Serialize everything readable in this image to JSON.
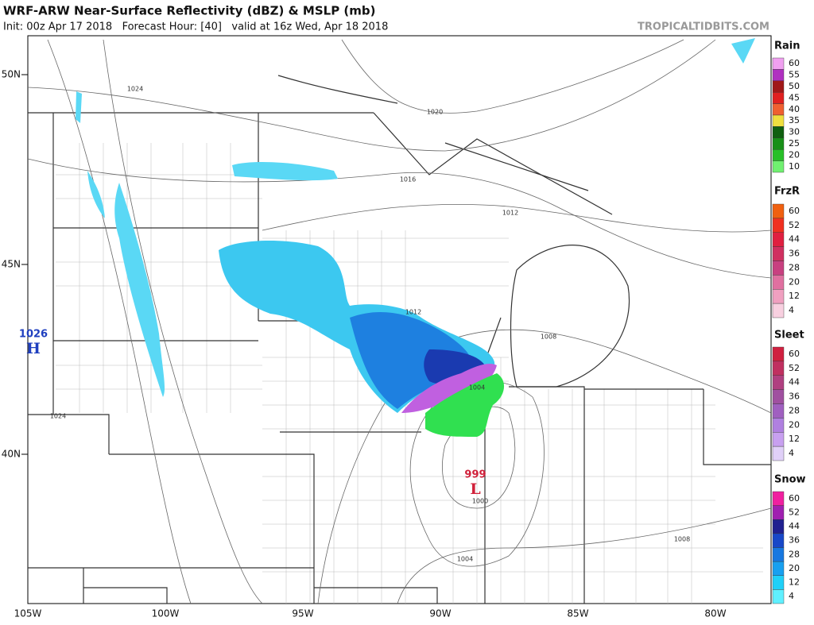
{
  "header": {
    "title": "WRF-ARW Near-Surface Reflectivity (dBZ) & MSLP (mb)",
    "subtitle": "Init: 00z Apr 17 2018   Forecast Hour: [40]   valid at 16z Wed, Apr 18 2018",
    "site": "TROPICALTIDBITS.COM"
  },
  "map": {
    "lat_labels": [
      "50N",
      "45N",
      "40N"
    ],
    "lon_labels": [
      "105W",
      "100W",
      "95W",
      "90W",
      "85W",
      "80W"
    ],
    "isobar_labels": [
      "1024",
      "1020",
      "1016",
      "1012",
      "1012",
      "1008",
      "1004",
      "1000",
      "1004",
      "1008",
      "1024"
    ],
    "highs": [
      {
        "value": "1026",
        "letter": "H",
        "color": "#1f3fbf"
      }
    ],
    "lows": [
      {
        "value": "999",
        "letter": "L",
        "color": "#d0203a"
      }
    ]
  },
  "legend": [
    {
      "title": "Rain",
      "ticks": [
        60,
        55,
        50,
        45,
        40,
        35,
        30,
        25,
        20,
        10
      ],
      "colors": [
        "#f0a0f0",
        "#b030c0",
        "#a01818",
        "#e02020",
        "#f06030",
        "#f0e040",
        "#106010",
        "#189018",
        "#28c028",
        "#70f070"
      ]
    },
    {
      "title": "FrzR",
      "ticks": [
        60,
        52,
        44,
        36,
        28,
        20,
        12,
        4
      ],
      "colors": [
        "#f06010",
        "#f03020",
        "#e02040",
        "#d03060",
        "#c84080",
        "#e070a0",
        "#f0a0c0",
        "#f8d0e0"
      ]
    },
    {
      "title": "Sleet",
      "ticks": [
        60,
        52,
        44,
        36,
        28,
        20,
        12,
        4
      ],
      "colors": [
        "#d02040",
        "#c03060",
        "#b04080",
        "#a050a0",
        "#a060c0",
        "#b080e0",
        "#c8a0f0",
        "#e0d0f8"
      ]
    },
    {
      "title": "Snow",
      "ticks": [
        60,
        52,
        44,
        36,
        28,
        20,
        12,
        4
      ],
      "colors": [
        "#f020a0",
        "#a020b0",
        "#202090",
        "#1848c8",
        "#1878e0",
        "#18a0f0",
        "#20d0f8",
        "#60f0ff"
      ]
    }
  ]
}
